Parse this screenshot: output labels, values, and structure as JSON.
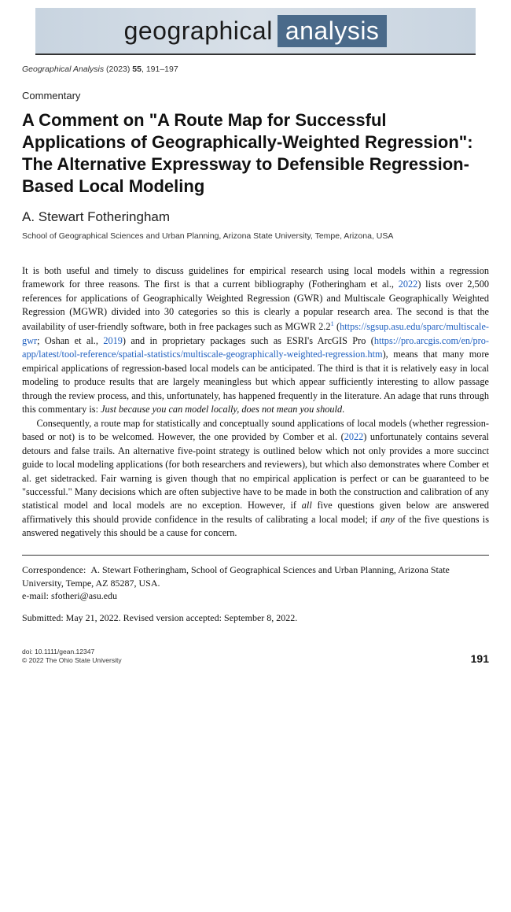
{
  "banner": {
    "word1": "geographical",
    "word2": "analysis",
    "bg_gradient": [
      "#c8d4e0",
      "#d8e0e8",
      "#c8d4e0"
    ],
    "word2_bg": "#4a6a8a",
    "word2_color": "#ffffff",
    "font_size": 32
  },
  "citation": {
    "journal": "Geographical Analysis",
    "year": "(2023)",
    "volume": "55",
    "pages": "191–197"
  },
  "article_type": "Commentary",
  "title": "A Comment on \"A Route Map for Successful Applications of Geographically-Weighted Regression\": The Alternative Expressway to Defensible Regression-Based Local Modeling",
  "author": "A. Stewart Fotheringham",
  "affiliation": "School of Geographical Sciences and Urban Planning, Arizona State University, Tempe, Arizona, USA",
  "abstract": {
    "p1_a": "It is both useful and timely to discuss guidelines for empirical research using local models within a regression framework for three reasons. The first is that a current bibliography (Fotheringham et al., ",
    "ref1": "2022",
    "p1_b": ") lists over 2,500 references for applications of Geographically Weighted Regression (GWR) and Multiscale Geographically Weighted Regression (MGWR) divided into 30 categories so this is clearly a popular research area. The second is that the availability of user-friendly software, both in free packages such as MGWR 2.2",
    "sup1": "1",
    "p1_c": " (",
    "link1": "https://sgsup.asu.edu/sparc/multiscale-gwr",
    "p1_d": "; Oshan et al., ",
    "ref2": "2019",
    "p1_e": ") and in proprietary packages such as ESRI's ArcGIS Pro (",
    "link2": "https://pro.arcgis.com/en/pro-app/latest/tool-reference/spatial-statistics/multiscale-geographically-weighted-regression.htm",
    "p1_f": "), means that many more empirical applications of regression-based local models can be anticipated. The third is that it is relatively easy in local modeling to produce results that are largely meaningless but which appear sufficiently interesting to allow passage through the review process, and this, unfortunately, has happened frequently in the literature. An adage that runs through this commentary is: ",
    "adage": "Just because you can model locally, does not mean you should",
    "p1_g": ".",
    "p2_a": "Consequently, a route map for statistically and conceptually sound applications of local models (whether regression-based or not) is to be welcomed. However, the one provided by Comber et al. (",
    "ref3": "2022",
    "p2_b": ") unfortunately contains several detours and false trails. An alternative five-point strategy is outlined below which not only provides a more succinct guide to local modeling applications (for both researchers and reviewers), but which also demonstrates where Comber et al. get sidetracked. Fair warning is given though that no empirical application is perfect or can be guaranteed to be \"successful.\" Many decisions which are often subjective have to be made in both the construction and calibration of any statistical model and local models are no exception. However, if ",
    "all": "all",
    "p2_c": " five questions given below are answered affirmatively this should provide confidence in the results of calibrating a local model; if ",
    "any": "any",
    "p2_d": " of the five questions is answered negatively this should be a cause for concern."
  },
  "correspondence": {
    "label": "Correspondence:",
    "text": "A. Stewart Fotheringham, School of Geographical Sciences and Urban Planning, Arizona State University, Tempe, AZ 85287, USA.",
    "email_label": "e-mail:",
    "email": "sfotheri@asu.edu"
  },
  "submitted": "Submitted: May 21, 2022. Revised version accepted: September 8, 2022.",
  "footer": {
    "doi": "doi: 10.1111/gean.12347",
    "copyright": "© 2022 The Ohio State University",
    "page": "191"
  },
  "colors": {
    "link": "#2060c0",
    "text": "#111111",
    "meta": "#333333"
  },
  "fonts": {
    "sans": "Arial, Helvetica, sans-serif",
    "serif": "Georgia, 'Times New Roman', serif"
  }
}
